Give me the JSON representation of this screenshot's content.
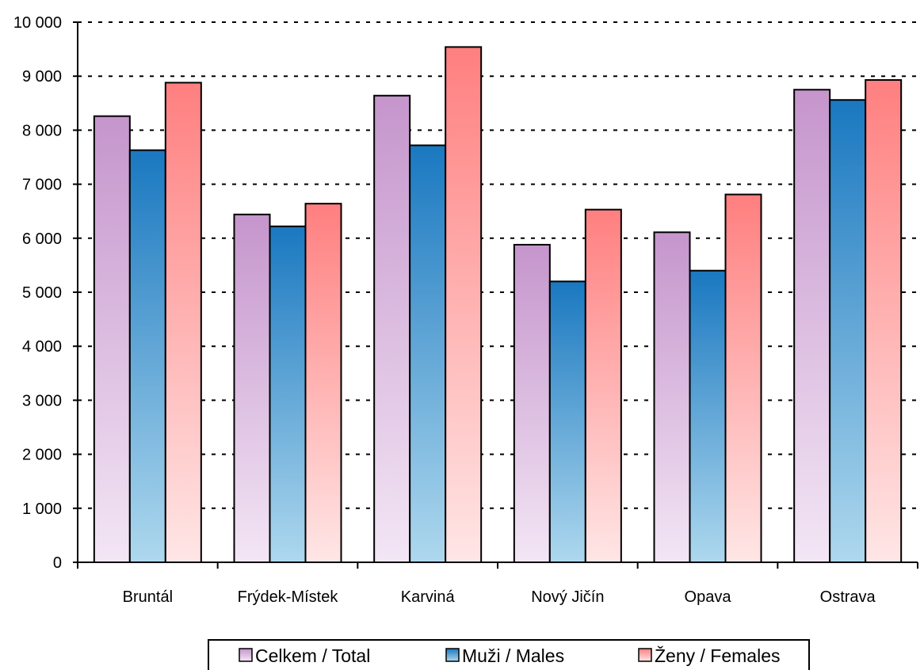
{
  "chart_data": {
    "type": "bar",
    "title": "",
    "xlabel": "",
    "ylabel": "",
    "categories": [
      "Bruntál",
      "Frýdek-Místek",
      "Karviná",
      "Nový Jičín",
      "Opava",
      "Ostrava"
    ],
    "series": [
      {
        "name": "Celkem / Total",
        "values": [
          8260,
          6440,
          8640,
          5880,
          6110,
          8750
        ]
      },
      {
        "name": "Muži / Males",
        "values": [
          7630,
          6220,
          7720,
          5200,
          5400,
          8560
        ]
      },
      {
        "name": "Ženy / Females",
        "values": [
          8880,
          6640,
          9540,
          6530,
          6810,
          8930
        ]
      }
    ],
    "ylim": [
      0,
      10000
    ],
    "yticks": [
      0,
      1000,
      2000,
      3000,
      4000,
      5000,
      6000,
      7000,
      8000,
      9000,
      10000
    ],
    "ytick_labels": [
      "0",
      "1 000",
      "2 000",
      "3 000",
      "4 000",
      "5 000",
      "6 000",
      "7 000",
      "8 000",
      "9 000",
      "10 000"
    ],
    "grid": {
      "y": true,
      "style": "dotted"
    },
    "legend_position": "bottom",
    "colors": {
      "total": {
        "top": "#c595cc",
        "bottom": "#f3e6f5"
      },
      "males": {
        "top": "#1a78c0",
        "bottom": "#aed8ee"
      },
      "females": {
        "top": "#ff7f7f",
        "bottom": "#ffe6e6"
      }
    }
  }
}
